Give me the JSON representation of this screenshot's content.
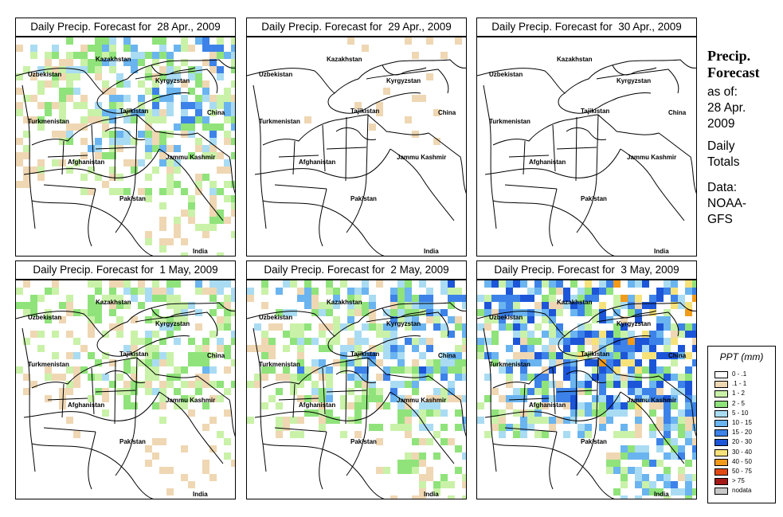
{
  "panels": [
    {
      "title": "Daily Precip. Forecast for  28 Apr., 2009",
      "intensity": 0.6
    },
    {
      "title": "Daily Precip. Forecast for  29 Apr., 2009",
      "intensity": 0.3
    },
    {
      "title": "Daily Precip. Forecast for  30 Apr., 2009",
      "intensity": 0.25
    },
    {
      "title": "Daily Precip. Forecast for  1 May, 2009",
      "intensity": 0.5
    },
    {
      "title": "Daily Precip. Forecast for  2 May, 2009",
      "intensity": 0.65
    },
    {
      "title": "Daily Precip. Forecast for  3 May, 2009",
      "intensity": 0.95
    }
  ],
  "map_labels": {
    "kazakhstan": "Kazakhstan",
    "uzbekistan": "Uzbekistan",
    "kyrgyzstan": "Kyrgyzstan",
    "tajikistan": "Tajikistan",
    "china": "China",
    "turkmenistan": "Turkmenistan",
    "afghanistan": "Afghanistan",
    "jammu_kashmir": "Jammu Kashmir",
    "pakistan": "Pakistan",
    "india": "India"
  },
  "sidebar": {
    "title_line1": "Precip.",
    "title_line2": "Forecast",
    "asof_line1": "as of:",
    "asof_line2": "28 Apr.",
    "asof_line3": "2009",
    "totals_line1": "Daily",
    "totals_line2": "Totals",
    "data_line1": "Data:",
    "data_line2": "NOAA-",
    "data_line3": "GFS"
  },
  "legend": {
    "title": "PPT (mm)",
    "items": [
      {
        "label": "0 - .1",
        "color": "#ffffff"
      },
      {
        "label": ".1 - 1",
        "color": "#efd7b3"
      },
      {
        "label": "1 - 2",
        "color": "#c9f2a8"
      },
      {
        "label": "2 - 5",
        "color": "#8fe37a"
      },
      {
        "label": "5 - 10",
        "color": "#a9dcf3"
      },
      {
        "label": "10 - 15",
        "color": "#6ab4f0"
      },
      {
        "label": "15 - 20",
        "color": "#3c82e8"
      },
      {
        "label": "20 - 30",
        "color": "#1c55d8"
      },
      {
        "label": "30 - 40",
        "color": "#f7e27a"
      },
      {
        "label": "40 - 50",
        "color": "#f29a1a"
      },
      {
        "label": "50 - 75",
        "color": "#e24a14"
      },
      {
        "label": "> 75",
        "color": "#a41818"
      },
      {
        "label": "nodata",
        "color": "#c9c9c9"
      }
    ]
  }
}
